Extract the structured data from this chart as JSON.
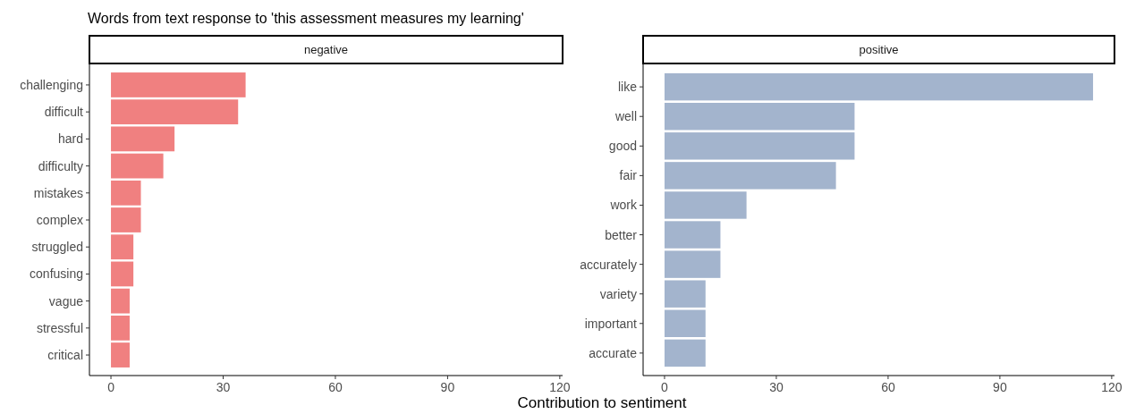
{
  "chart_data": [
    {
      "type": "bar",
      "orientation": "horizontal",
      "title": "Words from text response to 'this assessment measures my learning'",
      "subtitle": "negative",
      "xlabel": "Contribution to sentiment",
      "categories": [
        "challenging",
        "difficult",
        "hard",
        "difficulty",
        "mistakes",
        "complex",
        "struggled",
        "confusing",
        "vague",
        "stressful",
        "critical"
      ],
      "values": [
        36,
        34,
        17,
        14,
        8,
        8,
        6,
        6,
        5,
        5,
        5
      ],
      "color": "#f08080",
      "xlim": [
        -5.75,
        120.75
      ],
      "xticks": [
        0,
        30,
        60,
        90,
        120
      ],
      "grid": false
    },
    {
      "type": "bar",
      "orientation": "horizontal",
      "subtitle": "positive",
      "categories": [
        "like",
        "well",
        "good",
        "fair",
        "work",
        "better",
        "accurately",
        "variety",
        "important",
        "accurate"
      ],
      "values": [
        115,
        51,
        51,
        46,
        22,
        15,
        15,
        11,
        11,
        11
      ],
      "color": "#a3b4cd",
      "xlim": [
        -5.75,
        120.75
      ],
      "xticks": [
        0,
        30,
        60,
        90,
        120
      ],
      "grid": false
    }
  ]
}
